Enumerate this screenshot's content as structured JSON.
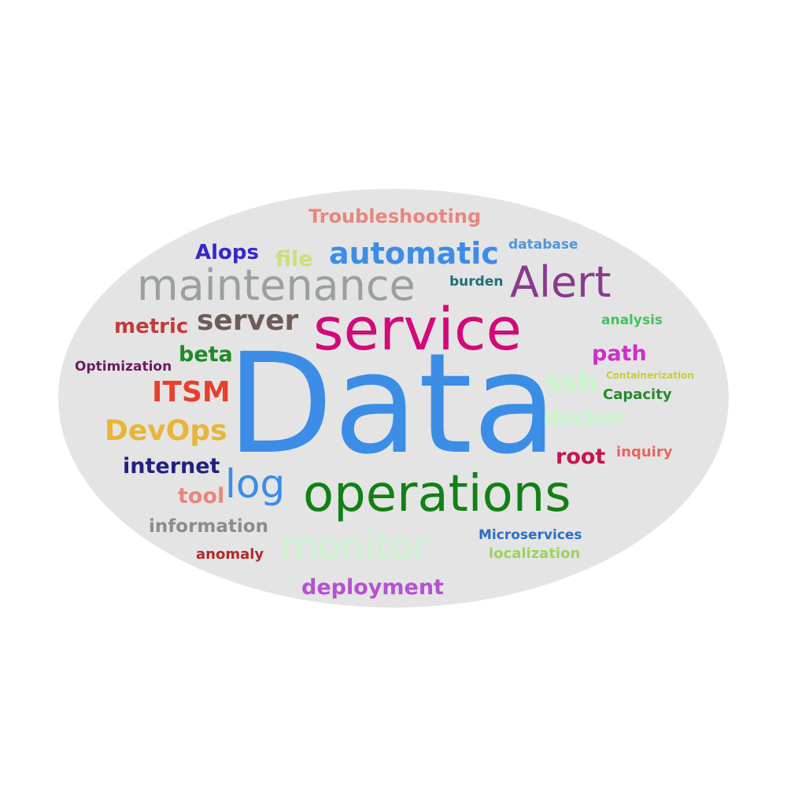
{
  "word_cloud": {
    "background_color": "#e4e4e4",
    "words": [
      {
        "text": "Data",
        "color": "#3b8de6"
      },
      {
        "text": "service",
        "color": "#d20a78"
      },
      {
        "text": "operations",
        "color": "#128016"
      },
      {
        "text": "maintenance",
        "color": "#9aa0a0"
      },
      {
        "text": "Alert",
        "color": "#8a3a8e"
      },
      {
        "text": "monitor",
        "color": "#c8f5cc"
      },
      {
        "text": "automatic",
        "color": "#3b8de6"
      },
      {
        "text": "log",
        "color": "#3b8de6"
      },
      {
        "text": "server",
        "color": "#6e5c58"
      },
      {
        "text": "DevOps",
        "color": "#e8b536"
      },
      {
        "text": "ITSM",
        "color": "#e8402c"
      },
      {
        "text": "internet",
        "color": "#21217e"
      },
      {
        "text": "Troubleshooting",
        "color": "#e8877e"
      },
      {
        "text": "deployment",
        "color": "#b551d3"
      },
      {
        "text": "metric",
        "color": "#c53a3a"
      },
      {
        "text": "beta",
        "color": "#1e8a2a"
      },
      {
        "text": "file",
        "color": "#c9e17a"
      },
      {
        "text": "Alops",
        "color": "#3728c5"
      },
      {
        "text": "information",
        "color": "#8a8d8f"
      },
      {
        "text": "tool",
        "color": "#e8877e"
      },
      {
        "text": "ssh",
        "color": "#c8f5cc"
      },
      {
        "text": "docker",
        "color": "#c8f5cc"
      },
      {
        "text": "root",
        "color": "#c8144e"
      },
      {
        "text": "path",
        "color": "#cc2fc8"
      },
      {
        "text": "database",
        "color": "#5195d6"
      },
      {
        "text": "burden",
        "color": "#1e6e7e"
      },
      {
        "text": "analysis",
        "color": "#44c25c"
      },
      {
        "text": "Capacity",
        "color": "#2a8a2a"
      },
      {
        "text": "Containerization",
        "color": "#c9cc3a"
      },
      {
        "text": "inquiry",
        "color": "#e8655e"
      },
      {
        "text": "Optimization",
        "color": "#6e1a5e"
      },
      {
        "text": "Microservices",
        "color": "#2a6ec5"
      },
      {
        "text": "localization",
        "color": "#9cd35c"
      },
      {
        "text": "anomaly",
        "color": "#b02a2a"
      }
    ]
  }
}
